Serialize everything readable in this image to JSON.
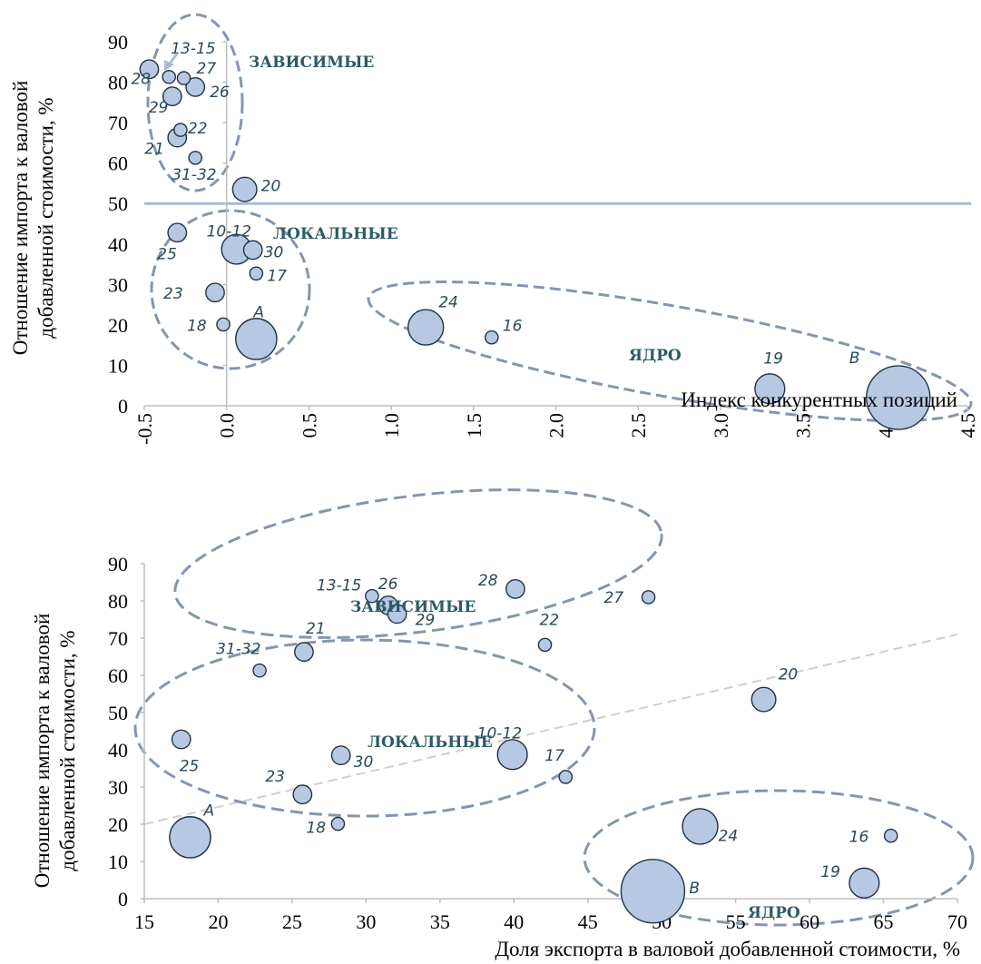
{
  "colors": {
    "bubble_fill": "#b7c9e2",
    "bubble_stroke": "#1f3348",
    "group_outline": "#8496ad",
    "threshold_line": "#a6bbd6",
    "trend_line": "#cfcfcf",
    "label_text": "#2a4a57",
    "group_text": "#2d5a66"
  },
  "chart_data": [
    {
      "type": "scatter",
      "variant": "bubble",
      "title": "",
      "xlabel": "Индекс конкурентных позиций",
      "ylabel": [
        "Отношение импорта к валовой",
        "добавленной стоимости, %"
      ],
      "xlim": [
        -0.5,
        4.5
      ],
      "ylim": [
        0,
        90
      ],
      "x_ticks": [
        "-0.5",
        "0.0",
        "0.5",
        "1.0",
        "1.5",
        "2.0",
        "2.5",
        "3.0",
        "3.5",
        "4.0",
        "4.5"
      ],
      "y_ticks": [
        "0",
        "10",
        "20",
        "30",
        "40",
        "50",
        "60",
        "70",
        "80",
        "90"
      ],
      "x_tick_rotation": -90,
      "grid": false,
      "horizontal_line": 50,
      "group_labels": [
        "ЗАВИСИМЫЕ",
        "ЛОКАЛЬНЫЕ",
        "ЯДРО"
      ],
      "points": [
        {
          "label": "28",
          "x": -0.47,
          "y": 83.2,
          "size": 2
        },
        {
          "label": "13-15",
          "x": -0.35,
          "y": 81.3,
          "size": 1
        },
        {
          "label": "27",
          "x": -0.26,
          "y": 81.0,
          "size": 1
        },
        {
          "label": "29",
          "x": -0.33,
          "y": 76.5,
          "size": 2
        },
        {
          "label": "26",
          "x": -0.19,
          "y": 78.8,
          "size": 2
        },
        {
          "label": "22",
          "x": -0.28,
          "y": 68.2,
          "size": 1
        },
        {
          "label": "21",
          "x": -0.3,
          "y": 66.3,
          "size": 2
        },
        {
          "label": "31-32",
          "x": -0.19,
          "y": 61.3,
          "size": 1
        },
        {
          "label": "20",
          "x": 0.11,
          "y": 53.5,
          "size": 3
        },
        {
          "label": "25",
          "x": -0.3,
          "y": 42.8,
          "size": 2
        },
        {
          "label": "10-12",
          "x": 0.06,
          "y": 38.7,
          "size": 4
        },
        {
          "label": "30",
          "x": 0.16,
          "y": 38.5,
          "size": 2
        },
        {
          "label": "17",
          "x": 0.18,
          "y": 32.7,
          "size": 1
        },
        {
          "label": "23",
          "x": -0.07,
          "y": 28.0,
          "size": 2
        },
        {
          "label": "18",
          "x": -0.02,
          "y": 20.1,
          "size": 1
        },
        {
          "label": "A",
          "x": 0.18,
          "y": 16.5,
          "size": 6
        },
        {
          "label": "24",
          "x": 1.21,
          "y": 19.4,
          "size": 5
        },
        {
          "label": "16",
          "x": 1.61,
          "y": 16.9,
          "size": 1
        },
        {
          "label": "19",
          "x": 3.3,
          "y": 4.2,
          "size": 4
        },
        {
          "label": "B",
          "x": 4.08,
          "y": 2.0,
          "size": 10
        }
      ]
    },
    {
      "type": "scatter",
      "variant": "bubble",
      "title": "",
      "xlabel": "Доля экспорта в валовой добавленной стоимости, %",
      "ylabel": [
        "Отношение импорта к валовой",
        "добавленной стоимости, %"
      ],
      "xlim": [
        15,
        70
      ],
      "ylim": [
        0,
        90
      ],
      "x_ticks": [
        "15",
        "20",
        "25",
        "30",
        "35",
        "40",
        "45",
        "50",
        "55",
        "60",
        "65",
        "70"
      ],
      "y_ticks": [
        "0",
        "10",
        "20",
        "30",
        "40",
        "50",
        "60",
        "70",
        "80",
        "90"
      ],
      "grid": false,
      "trend_line": {
        "x": [
          15,
          70
        ],
        "y": [
          20,
          71
        ]
      },
      "group_labels": [
        "ЗАВИСИМЫЕ",
        "ЛОКАЛЬНЫЕ",
        "ЯДРО"
      ],
      "points": [
        {
          "label": "13-15",
          "x": 30.4,
          "y": 81.3,
          "size": 1
        },
        {
          "label": "26",
          "x": 31.5,
          "y": 78.8,
          "size": 2
        },
        {
          "label": "29",
          "x": 32.1,
          "y": 76.5,
          "size": 2
        },
        {
          "label": "28",
          "x": 40.1,
          "y": 83.2,
          "size": 2
        },
        {
          "label": "27",
          "x": 49.1,
          "y": 81.0,
          "size": 1
        },
        {
          "label": "22",
          "x": 42.1,
          "y": 68.2,
          "size": 1
        },
        {
          "label": "21",
          "x": 25.8,
          "y": 66.3,
          "size": 2
        },
        {
          "label": "31-32",
          "x": 22.8,
          "y": 61.3,
          "size": 1
        },
        {
          "label": "20",
          "x": 56.9,
          "y": 53.5,
          "size": 3
        },
        {
          "label": "25",
          "x": 17.5,
          "y": 42.8,
          "size": 2
        },
        {
          "label": "30",
          "x": 28.3,
          "y": 38.5,
          "size": 2
        },
        {
          "label": "10-12",
          "x": 39.9,
          "y": 38.7,
          "size": 4
        },
        {
          "label": "17",
          "x": 43.5,
          "y": 32.7,
          "size": 1
        },
        {
          "label": "23",
          "x": 25.7,
          "y": 28.0,
          "size": 2
        },
        {
          "label": "18",
          "x": 28.1,
          "y": 20.1,
          "size": 1
        },
        {
          "label": "A",
          "x": 18.1,
          "y": 16.5,
          "size": 6
        },
        {
          "label": "24",
          "x": 52.6,
          "y": 19.4,
          "size": 5
        },
        {
          "label": "16",
          "x": 65.5,
          "y": 16.9,
          "size": 1
        },
        {
          "label": "19",
          "x": 63.7,
          "y": 4.2,
          "size": 4
        },
        {
          "label": "B",
          "x": 49.4,
          "y": 2.0,
          "size": 10
        }
      ]
    }
  ]
}
